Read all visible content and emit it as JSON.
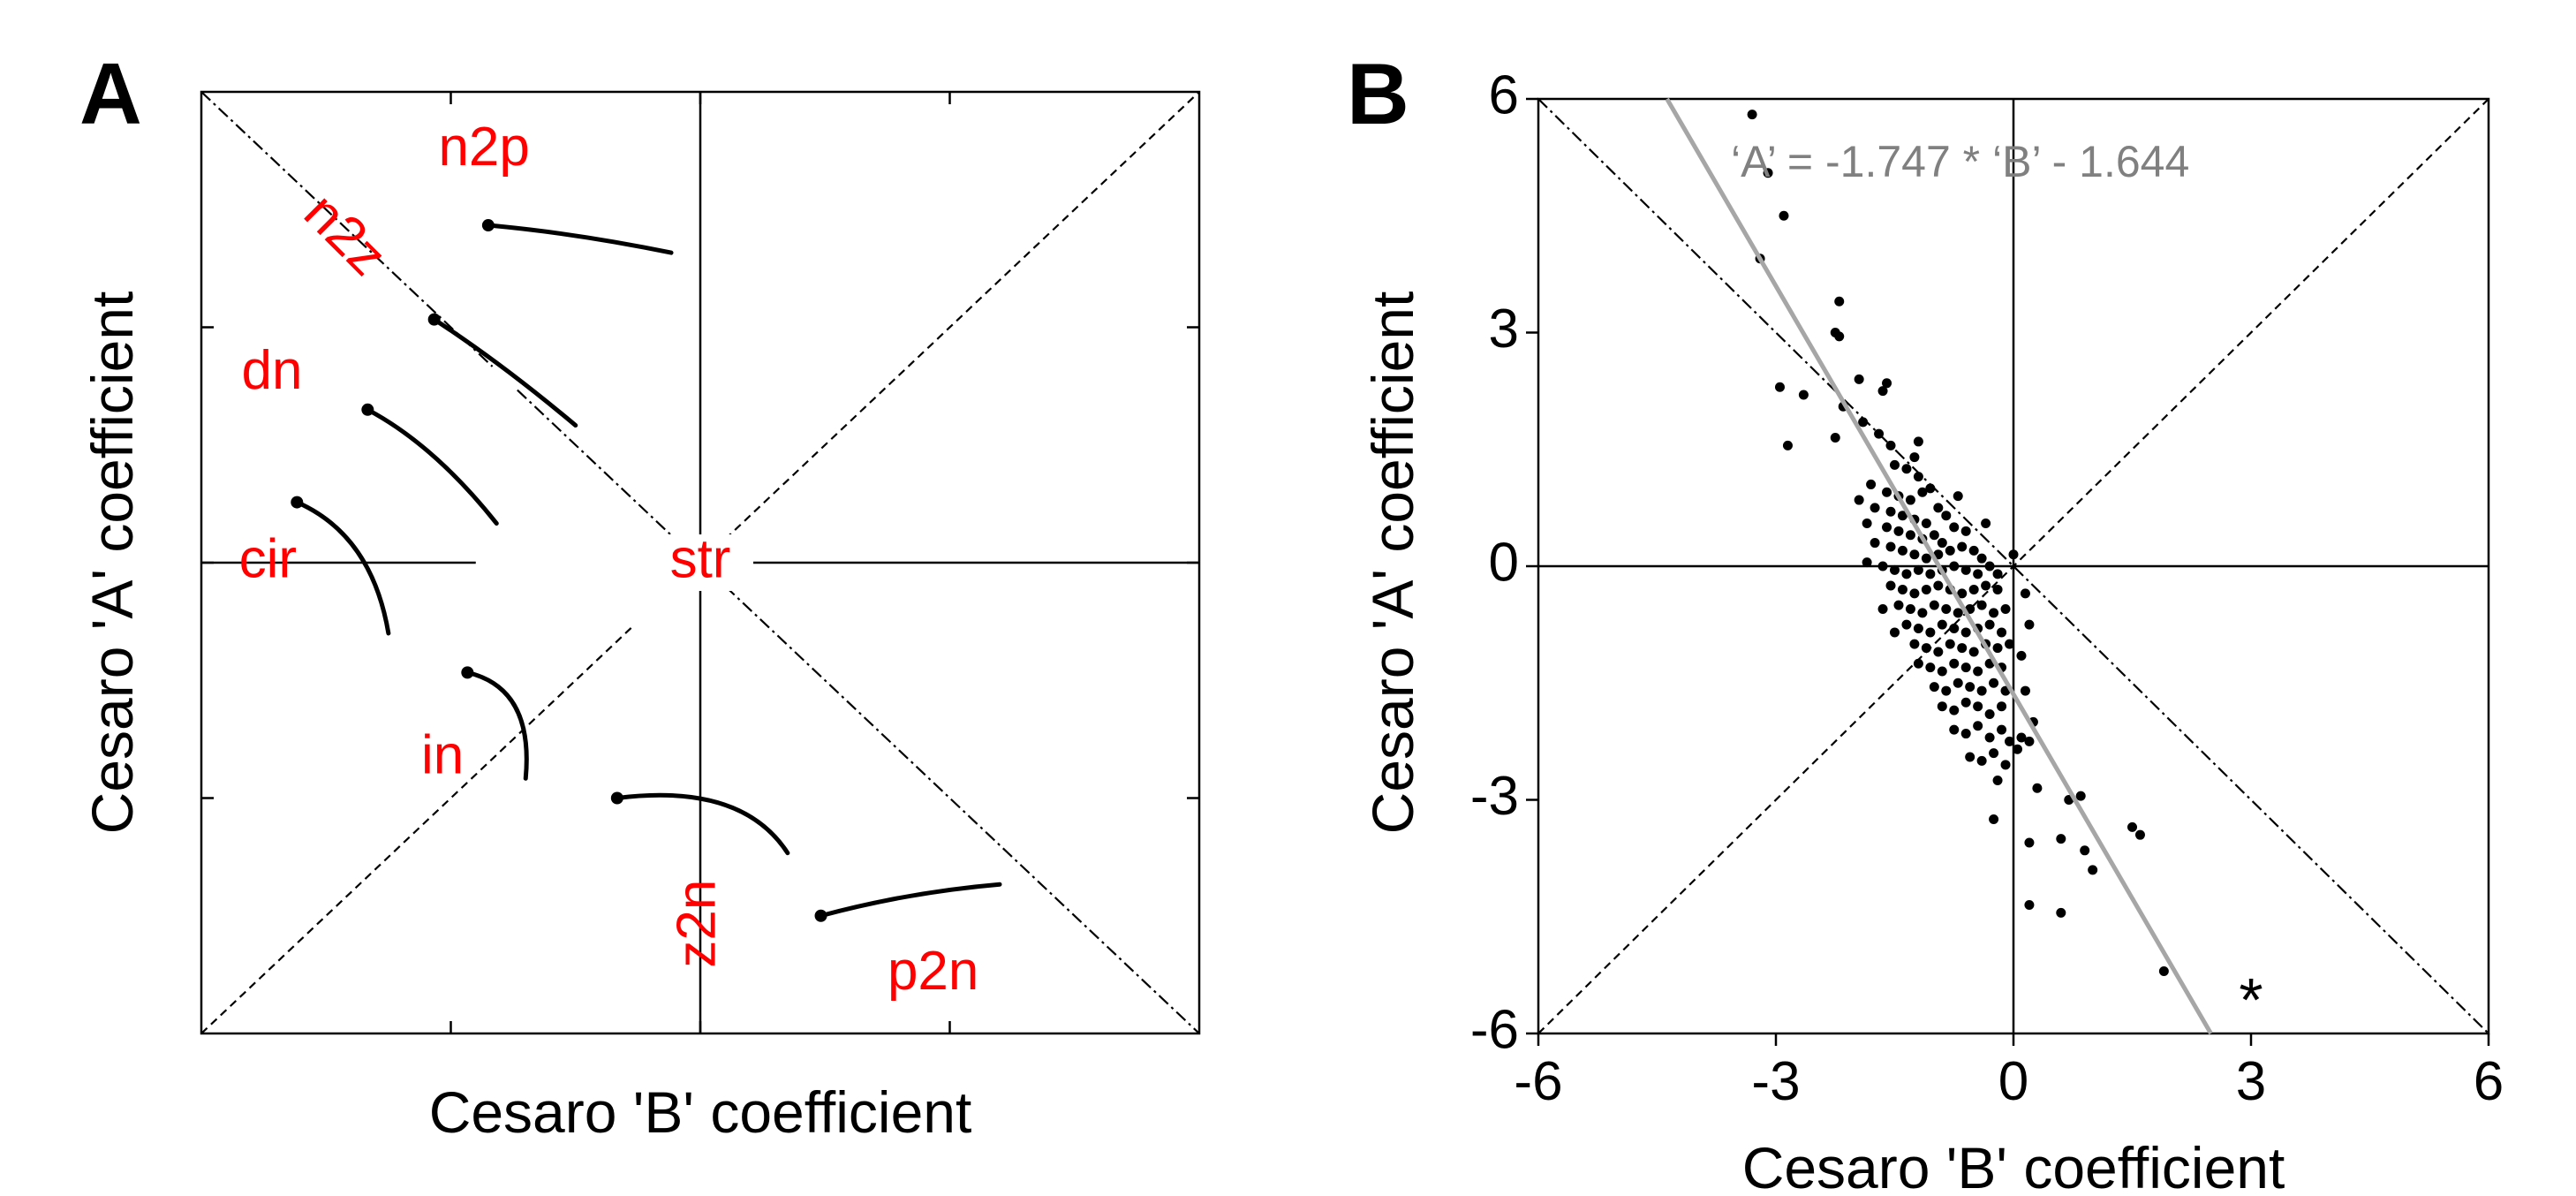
{
  "chart_data": [
    {
      "panel": "A",
      "type": "diagram",
      "xlabel": "Cesaro 'B' coefficient",
      "ylabel": "Cesaro 'A' coefficient",
      "xlim": [
        -6,
        6
      ],
      "ylim": [
        -6,
        6
      ],
      "tick_positions": [
        -3,
        0,
        3
      ],
      "tick_labels_shown": false,
      "classes": [
        {
          "label": "n2p",
          "x": -2.6,
          "y": 5.25
        },
        {
          "label": "n2z",
          "x": -4.3,
          "y": 4.15
        },
        {
          "label": "dn",
          "x": -5.15,
          "y": 2.4
        },
        {
          "label": "cir",
          "x": -5.2,
          "y": 0.0
        },
        {
          "label": "str",
          "x": 0.0,
          "y": 0.0
        },
        {
          "label": "in",
          "x": -3.1,
          "y": -2.5
        },
        {
          "label": "z2n",
          "x": 0.0,
          "y": -4.6
        },
        {
          "label": "p2n",
          "x": 2.8,
          "y": -5.25
        }
      ],
      "curves": [
        {
          "points": [
            [
              -2.55,
              4.3
            ],
            [
              -1.5,
              4.2
            ],
            [
              -0.35,
              3.95
            ]
          ]
        },
        {
          "points": [
            [
              -3.2,
              3.1
            ],
            [
              -2.4,
              2.55
            ],
            [
              -1.5,
              1.75
            ]
          ]
        },
        {
          "points": [
            [
              -4.0,
              1.95
            ],
            [
              -3.2,
              1.5
            ],
            [
              -2.45,
              0.5
            ]
          ]
        },
        {
          "points": [
            [
              -4.85,
              0.77
            ],
            [
              -3.95,
              0.35
            ],
            [
              -3.75,
              -0.9
            ]
          ]
        },
        {
          "points": [
            [
              -2.8,
              -1.4
            ],
            [
              -2.0,
              -1.6
            ],
            [
              -2.1,
              -2.75
            ]
          ]
        },
        {
          "points": [
            [
              -1.0,
              -3.0
            ],
            [
              0.5,
              -2.8
            ],
            [
              1.05,
              -3.7
            ]
          ]
        },
        {
          "points": [
            [
              1.45,
              -4.5
            ],
            [
              2.5,
              -4.2
            ],
            [
              3.6,
              -4.1
            ]
          ]
        }
      ]
    },
    {
      "panel": "B",
      "type": "scatter",
      "xlabel": "Cesaro 'B' coefficient",
      "ylabel": "Cesaro 'A' coefficient",
      "xlim": [
        -6,
        6
      ],
      "ylim": [
        -6,
        6
      ],
      "xticks": [
        -6,
        -3,
        0,
        3,
        6
      ],
      "yticks": [
        -6,
        -3,
        0,
        3,
        6
      ],
      "annotation": "‘A’ = -1.747 * ‘B’ - 1.644",
      "fit": {
        "slope": -1.747,
        "intercept": -1.644
      },
      "marker_label": "*",
      "marker_position": [
        3.0,
        -5.5
      ],
      "points": [
        [
          -3.3,
          5.8
        ],
        [
          -3.1,
          5.05
        ],
        [
          -2.9,
          4.5
        ],
        [
          -3.2,
          3.95
        ],
        [
          -2.2,
          3.4
        ],
        [
          -2.25,
          3.0
        ],
        [
          -2.2,
          2.95
        ],
        [
          -2.95,
          2.3
        ],
        [
          -2.65,
          2.2
        ],
        [
          -1.95,
          2.4
        ],
        [
          -1.6,
          2.35
        ],
        [
          -1.65,
          2.25
        ],
        [
          -2.15,
          2.05
        ],
        [
          -2.25,
          1.65
        ],
        [
          -2.85,
          1.55
        ],
        [
          -1.9,
          1.85
        ],
        [
          -1.7,
          1.7
        ],
        [
          -1.55,
          1.55
        ],
        [
          -1.5,
          1.3
        ],
        [
          -1.35,
          1.25
        ],
        [
          -1.25,
          1.4
        ],
        [
          -1.2,
          1.15
        ],
        [
          -1.8,
          1.05
        ],
        [
          -1.6,
          0.95
        ],
        [
          -1.45,
          0.9
        ],
        [
          -1.3,
          0.85
        ],
        [
          -1.15,
          0.95
        ],
        [
          -1.05,
          1.0
        ],
        [
          -1.95,
          0.85
        ],
        [
          -1.75,
          0.75
        ],
        [
          -1.55,
          0.7
        ],
        [
          -1.4,
          0.65
        ],
        [
          -1.25,
          0.6
        ],
        [
          -1.1,
          0.55
        ],
        [
          -0.95,
          0.75
        ],
        [
          -0.85,
          0.65
        ],
        [
          -1.6,
          0.5
        ],
        [
          -1.45,
          0.45
        ],
        [
          -1.3,
          0.4
        ],
        [
          -1.15,
          0.35
        ],
        [
          -1.0,
          0.4
        ],
        [
          -0.9,
          0.3
        ],
        [
          -0.75,
          0.5
        ],
        [
          -0.6,
          0.45
        ],
        [
          -1.75,
          0.3
        ],
        [
          -1.55,
          0.25
        ],
        [
          -1.4,
          0.2
        ],
        [
          -1.25,
          0.15
        ],
        [
          -1.1,
          0.1
        ],
        [
          -0.95,
          0.15
        ],
        [
          -0.8,
          0.2
        ],
        [
          -0.65,
          0.25
        ],
        [
          -0.5,
          0.2
        ],
        [
          -0.4,
          0.1
        ],
        [
          -1.85,
          0.05
        ],
        [
          -1.65,
          0.0
        ],
        [
          -1.5,
          -0.05
        ],
        [
          -1.35,
          -0.1
        ],
        [
          -1.2,
          -0.05
        ],
        [
          -1.05,
          -0.1
        ],
        [
          -0.9,
          -0.05
        ],
        [
          -0.75,
          0.0
        ],
        [
          -0.6,
          -0.05
        ],
        [
          -0.45,
          -0.1
        ],
        [
          -0.3,
          0.0
        ],
        [
          -0.2,
          -0.1
        ],
        [
          -1.55,
          -0.25
        ],
        [
          -1.4,
          -0.3
        ],
        [
          -1.25,
          -0.35
        ],
        [
          -1.1,
          -0.3
        ],
        [
          -0.95,
          -0.25
        ],
        [
          -0.8,
          -0.3
        ],
        [
          -0.65,
          -0.35
        ],
        [
          -0.5,
          -0.3
        ],
        [
          -0.35,
          -0.25
        ],
        [
          -0.2,
          -0.3
        ],
        [
          -1.45,
          -0.5
        ],
        [
          -1.3,
          -0.55
        ],
        [
          -1.15,
          -0.6
        ],
        [
          -1.0,
          -0.5
        ],
        [
          -0.85,
          -0.55
        ],
        [
          -0.7,
          -0.6
        ],
        [
          -0.55,
          -0.55
        ],
        [
          -0.4,
          -0.5
        ],
        [
          -0.25,
          -0.6
        ],
        [
          -0.1,
          -0.55
        ],
        [
          -1.35,
          -0.75
        ],
        [
          -1.2,
          -0.8
        ],
        [
          -1.05,
          -0.85
        ],
        [
          -0.9,
          -0.75
        ],
        [
          -0.75,
          -0.8
        ],
        [
          -0.6,
          -0.85
        ],
        [
          -0.45,
          -0.8
        ],
        [
          -0.3,
          -0.75
        ],
        [
          -0.15,
          -0.85
        ],
        [
          -1.25,
          -1.0
        ],
        [
          -1.1,
          -1.05
        ],
        [
          -0.95,
          -1.1
        ],
        [
          -0.8,
          -1.0
        ],
        [
          -0.65,
          -1.05
        ],
        [
          -0.5,
          -1.1
        ],
        [
          -0.35,
          -1.0
        ],
        [
          -0.2,
          -1.05
        ],
        [
          -0.05,
          -1.0
        ],
        [
          -1.2,
          -1.25
        ],
        [
          -1.05,
          -1.3
        ],
        [
          -0.9,
          -1.35
        ],
        [
          -0.75,
          -1.25
        ],
        [
          -0.6,
          -1.3
        ],
        [
          -0.45,
          -1.35
        ],
        [
          -0.3,
          -1.25
        ],
        [
          -0.15,
          -1.3
        ],
        [
          -1.0,
          -1.55
        ],
        [
          -0.85,
          -1.6
        ],
        [
          -0.7,
          -1.5
        ],
        [
          -0.55,
          -1.55
        ],
        [
          -0.4,
          -1.6
        ],
        [
          -0.25,
          -1.5
        ],
        [
          -0.1,
          -1.6
        ],
        [
          -0.9,
          -1.8
        ],
        [
          -0.75,
          -1.85
        ],
        [
          -0.6,
          -1.75
        ],
        [
          -0.45,
          -1.8
        ],
        [
          -0.3,
          -1.9
        ],
        [
          -0.15,
          -1.8
        ],
        [
          -0.75,
          -2.1
        ],
        [
          -0.6,
          -2.15
        ],
        [
          -0.45,
          -2.05
        ],
        [
          -0.3,
          -2.2
        ],
        [
          -0.15,
          -2.1
        ],
        [
          -0.05,
          -2.25
        ],
        [
          0.1,
          -2.2
        ],
        [
          -0.55,
          -2.45
        ],
        [
          -0.4,
          -2.5
        ],
        [
          -0.25,
          -2.4
        ],
        [
          -0.1,
          -2.55
        ],
        [
          0.05,
          -2.35
        ],
        [
          0.2,
          -2.25
        ],
        [
          -1.85,
          0.55
        ],
        [
          -1.2,
          1.6
        ],
        [
          -0.7,
          0.9
        ],
        [
          -0.35,
          0.55
        ],
        [
          0.0,
          0.15
        ],
        [
          0.15,
          -0.35
        ],
        [
          0.2,
          -0.75
        ],
        [
          0.1,
          -1.15
        ],
        [
          0.15,
          -1.6
        ],
        [
          0.25,
          -2.0
        ],
        [
          -1.65,
          -0.55
        ],
        [
          -1.5,
          -0.85
        ],
        [
          -0.2,
          -2.75
        ],
        [
          -0.25,
          -3.25
        ],
        [
          0.3,
          -2.85
        ],
        [
          0.7,
          -3.0
        ],
        [
          0.2,
          -3.55
        ],
        [
          0.6,
          -3.5
        ],
        [
          0.9,
          -3.65
        ],
        [
          1.0,
          -3.9
        ],
        [
          0.85,
          -2.95
        ],
        [
          1.5,
          -3.35
        ],
        [
          1.6,
          -3.45
        ],
        [
          0.6,
          -4.45
        ],
        [
          0.2,
          -4.35
        ],
        [
          1.9,
          -5.2
        ]
      ]
    }
  ]
}
